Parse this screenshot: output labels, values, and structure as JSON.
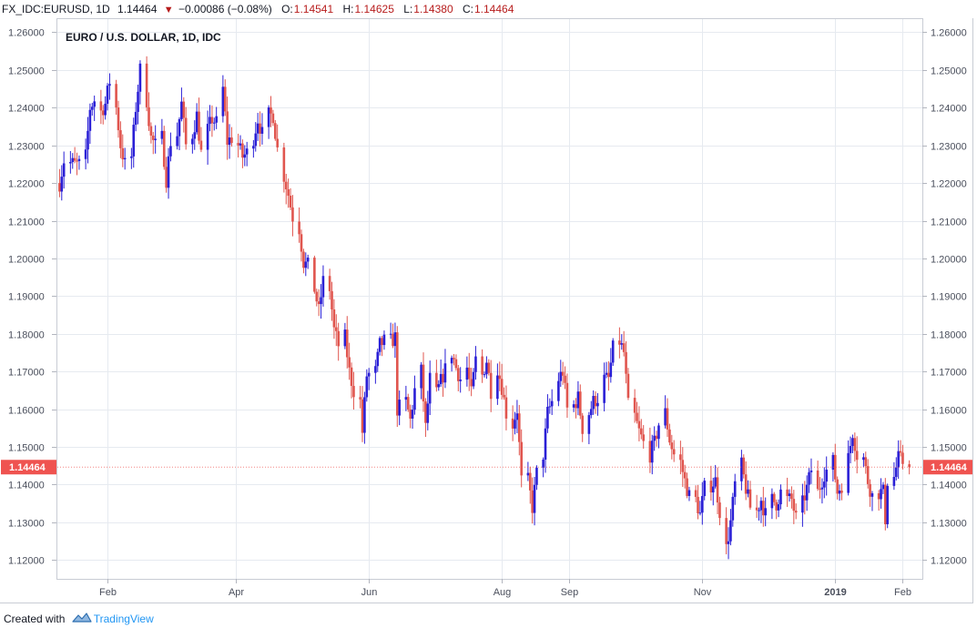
{
  "header": {
    "symbol": "FX_IDC:EURUSD, 1D",
    "last": "1.14464",
    "change": "−0.00086 (−0.08%)",
    "open_label": "O:",
    "open": "1.14541",
    "high_label": "H:",
    "high": "1.14625",
    "low_label": "L:",
    "low": "1.14380",
    "close_label": "C:",
    "close": "1.14464",
    "change_direction_icon": "triangle-down-icon"
  },
  "footer": {
    "created_with": "Created with",
    "brand": "TradingView",
    "logo_icon": "tradingview-cloud-icon"
  },
  "colors": {
    "up": "#2a1fd6",
    "down": "#e0554e",
    "grid": "#e6eaf0",
    "price_tag": "#ef5350"
  },
  "chart_data": {
    "type": "candlestick",
    "title": "EURO / U.S. DOLLAR, 1D, IDC",
    "ylim": [
      1.115,
      1.2635
    ],
    "y_ticks": [
      "1.12000",
      "1.13000",
      "1.14000",
      "1.15000",
      "1.16000",
      "1.17000",
      "1.18000",
      "1.19000",
      "1.20000",
      "1.21000",
      "1.22000",
      "1.23000",
      "1.24000",
      "1.25000",
      "1.26000"
    ],
    "x_range": [
      "2018-01-09",
      "2019-02-10"
    ],
    "x_ticks": [
      {
        "label": "Feb",
        "date": "2018-02-01",
        "bold": false
      },
      {
        "label": "Apr",
        "date": "2018-04-01",
        "bold": false
      },
      {
        "label": "Jun",
        "date": "2018-06-01",
        "bold": false
      },
      {
        "label": "Aug",
        "date": "2018-08-01",
        "bold": false
      },
      {
        "label": "Sep",
        "date": "2018-09-01",
        "bold": false
      },
      {
        "label": "Nov",
        "date": "2018-11-01",
        "bold": false
      },
      {
        "label": "2019",
        "date": "2019-01-01",
        "bold": true
      },
      {
        "label": "Feb",
        "date": "2019-02-01",
        "bold": false
      }
    ],
    "grid": true,
    "last_price": "1.14464",
    "trend": [
      [
        "2018-01-10",
        1.22
      ],
      [
        "2018-01-12",
        1.226
      ],
      [
        "2018-01-17",
        1.225
      ],
      [
        "2018-01-19",
        1.225
      ],
      [
        "2018-01-22",
        1.227
      ],
      [
        "2018-01-24",
        1.24
      ],
      [
        "2018-01-26",
        1.242
      ],
      [
        "2018-01-29",
        1.239
      ],
      [
        "2018-01-31",
        1.241
      ],
      [
        "2018-02-02",
        1.247
      ],
      [
        "2018-02-05",
        1.24
      ],
      [
        "2018-02-07",
        1.23
      ],
      [
        "2018-02-09",
        1.225
      ],
      [
        "2018-02-12",
        1.227
      ],
      [
        "2018-02-14",
        1.24
      ],
      [
        "2018-02-16",
        1.25
      ],
      [
        "2018-02-19",
        1.242
      ],
      [
        "2018-02-21",
        1.232
      ],
      [
        "2018-02-23",
        1.23
      ],
      [
        "2018-02-26",
        1.232
      ],
      [
        "2018-02-28",
        1.221
      ],
      [
        "2018-03-02",
        1.231
      ],
      [
        "2018-03-05",
        1.233
      ],
      [
        "2018-03-07",
        1.241
      ],
      [
        "2018-03-09",
        1.23
      ],
      [
        "2018-03-12",
        1.233
      ],
      [
        "2018-03-14",
        1.238
      ],
      [
        "2018-03-16",
        1.228
      ],
      [
        "2018-03-19",
        1.234
      ],
      [
        "2018-03-21",
        1.237
      ],
      [
        "2018-03-23",
        1.236
      ],
      [
        "2018-03-26",
        1.245
      ],
      [
        "2018-03-28",
        1.231
      ],
      [
        "2018-03-30",
        1.232
      ],
      [
        "2018-04-02",
        1.23
      ],
      [
        "2018-04-04",
        1.227
      ],
      [
        "2018-04-06",
        1.228
      ],
      [
        "2018-04-09",
        1.232
      ],
      [
        "2018-04-11",
        1.237
      ],
      [
        "2018-04-13",
        1.233
      ],
      [
        "2018-04-16",
        1.238
      ],
      [
        "2018-04-18",
        1.238
      ],
      [
        "2018-04-20",
        1.229
      ],
      [
        "2018-04-23",
        1.222
      ],
      [
        "2018-04-25",
        1.217
      ],
      [
        "2018-04-27",
        1.211
      ],
      [
        "2018-04-30",
        1.208
      ],
      [
        "2018-05-02",
        1.199
      ],
      [
        "2018-05-04",
        1.198
      ],
      [
        "2018-05-07",
        1.192
      ],
      [
        "2018-05-09",
        1.186
      ],
      [
        "2018-05-11",
        1.194
      ],
      [
        "2018-05-14",
        1.192
      ],
      [
        "2018-05-16",
        1.181
      ],
      [
        "2018-05-18",
        1.177
      ],
      [
        "2018-05-21",
        1.179
      ],
      [
        "2018-05-23",
        1.17
      ],
      [
        "2018-05-25",
        1.165
      ],
      [
        "2018-05-28",
        1.162
      ],
      [
        "2018-05-29",
        1.154
      ],
      [
        "2018-05-31",
        1.169
      ],
      [
        "2018-06-04",
        1.17
      ],
      [
        "2018-06-06",
        1.177
      ],
      [
        "2018-06-08",
        1.178
      ],
      [
        "2018-06-11",
        1.178
      ],
      [
        "2018-06-13",
        1.179
      ],
      [
        "2018-06-14",
        1.16
      ],
      [
        "2018-06-18",
        1.162
      ],
      [
        "2018-06-20",
        1.157
      ],
      [
        "2018-06-22",
        1.165
      ],
      [
        "2018-06-25",
        1.17
      ],
      [
        "2018-06-27",
        1.155
      ],
      [
        "2018-06-29",
        1.168
      ],
      [
        "2018-07-02",
        1.164
      ],
      [
        "2018-07-05",
        1.169
      ],
      [
        "2018-07-09",
        1.175
      ],
      [
        "2018-07-11",
        1.171
      ],
      [
        "2018-07-13",
        1.168
      ],
      [
        "2018-07-16",
        1.171
      ],
      [
        "2018-07-18",
        1.164
      ],
      [
        "2018-07-20",
        1.173
      ],
      [
        "2018-07-23",
        1.169
      ],
      [
        "2018-07-25",
        1.173
      ],
      [
        "2018-07-27",
        1.165
      ],
      [
        "2018-07-30",
        1.171
      ],
      [
        "2018-08-01",
        1.166
      ],
      [
        "2018-08-03",
        1.159
      ],
      [
        "2018-08-06",
        1.156
      ],
      [
        "2018-08-08",
        1.16
      ],
      [
        "2018-08-10",
        1.141
      ],
      [
        "2018-08-13",
        1.141
      ],
      [
        "2018-08-15",
        1.134
      ],
      [
        "2018-08-17",
        1.143
      ],
      [
        "2018-08-20",
        1.148
      ],
      [
        "2018-08-22",
        1.159
      ],
      [
        "2018-08-24",
        1.162
      ],
      [
        "2018-08-27",
        1.168
      ],
      [
        "2018-08-29",
        1.17
      ],
      [
        "2018-08-31",
        1.16
      ],
      [
        "2018-09-03",
        1.161
      ],
      [
        "2018-09-05",
        1.163
      ],
      [
        "2018-09-07",
        1.155
      ],
      [
        "2018-09-10",
        1.159
      ],
      [
        "2018-09-12",
        1.162
      ],
      [
        "2018-09-14",
        1.163
      ],
      [
        "2018-09-17",
        1.168
      ],
      [
        "2018-09-19",
        1.168
      ],
      [
        "2018-09-21",
        1.176
      ],
      [
        "2018-09-24",
        1.178
      ],
      [
        "2018-09-26",
        1.175
      ],
      [
        "2018-09-28",
        1.161
      ],
      [
        "2018-10-01",
        1.158
      ],
      [
        "2018-10-03",
        1.154
      ],
      [
        "2018-10-05",
        1.151
      ],
      [
        "2018-10-08",
        1.148
      ],
      [
        "2018-10-10",
        1.151
      ],
      [
        "2018-10-12",
        1.156
      ],
      [
        "2018-10-15",
        1.159
      ],
      [
        "2018-10-17",
        1.152
      ],
      [
        "2018-10-19",
        1.148
      ],
      [
        "2018-10-22",
        1.146
      ],
      [
        "2018-10-24",
        1.141
      ],
      [
        "2018-10-26",
        1.137
      ],
      [
        "2018-10-29",
        1.136
      ],
      [
        "2018-10-31",
        1.132
      ],
      [
        "2018-11-02",
        1.139
      ],
      [
        "2018-11-05",
        1.14
      ],
      [
        "2018-11-07",
        1.141
      ],
      [
        "2018-11-09",
        1.133
      ],
      [
        "2018-11-12",
        1.123
      ],
      [
        "2018-11-14",
        1.13
      ],
      [
        "2018-11-16",
        1.14
      ],
      [
        "2018-11-19",
        1.145
      ],
      [
        "2018-11-21",
        1.139
      ],
      [
        "2018-11-23",
        1.134
      ],
      [
        "2018-11-26",
        1.133
      ],
      [
        "2018-11-28",
        1.136
      ],
      [
        "2018-11-30",
        1.132
      ],
      [
        "2018-12-03",
        1.136
      ],
      [
        "2018-12-05",
        1.135
      ],
      [
        "2018-12-07",
        1.138
      ],
      [
        "2018-12-10",
        1.136
      ],
      [
        "2018-12-12",
        1.136
      ],
      [
        "2018-12-14",
        1.131
      ],
      [
        "2018-12-17",
        1.135
      ],
      [
        "2018-12-19",
        1.139
      ],
      [
        "2018-12-21",
        1.144
      ],
      [
        "2018-12-24",
        1.138
      ],
      [
        "2018-12-27",
        1.143
      ],
      [
        "2018-12-31",
        1.146
      ],
      [
        "2019-01-02",
        1.138
      ],
      [
        "2019-01-04",
        1.14
      ],
      [
        "2019-01-07",
        1.147
      ],
      [
        "2019-01-09",
        1.154
      ],
      [
        "2019-01-11",
        1.148
      ],
      [
        "2019-01-14",
        1.147
      ],
      [
        "2019-01-16",
        1.141
      ],
      [
        "2019-01-18",
        1.137
      ],
      [
        "2019-01-21",
        1.138
      ],
      [
        "2019-01-23",
        1.138
      ],
      [
        "2019-01-24",
        1.131
      ],
      [
        "2019-01-25",
        1.141
      ],
      [
        "2019-01-28",
        1.142
      ],
      [
        "2019-01-30",
        1.147
      ],
      [
        "2019-02-01",
        1.146
      ],
      [
        "2019-02-04",
        1.1446
      ]
    ]
  }
}
